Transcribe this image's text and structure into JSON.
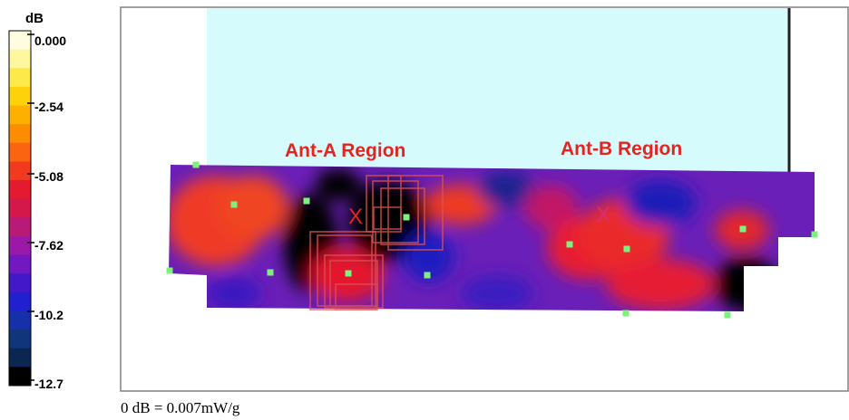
{
  "chart_data": {
    "type": "heatmap",
    "title": "",
    "colorbar": {
      "unit": "dB",
      "ticks": [
        "0.000",
        "-2.54",
        "-5.08",
        "-7.62",
        "-10.2",
        "-12.7"
      ],
      "range": [
        -12.7,
        0.0
      ],
      "levels_high_to_low": [
        "#fffde0",
        "#fff6a0",
        "#fde94a",
        "#fdd20a",
        "#fdb000",
        "#fd8d00",
        "#fb6410",
        "#f23a1e",
        "#e41a30",
        "#d4184a",
        "#b81a78",
        "#9a19a8",
        "#7218c0",
        "#4318c8",
        "#2020d0",
        "#1530a8",
        "#10357a",
        "#0b2650",
        "#000000"
      ]
    },
    "annotations": [
      {
        "text": "Ant-A Region",
        "color": "#e8231f"
      },
      {
        "text": "Ant-B Region",
        "color": "#e8231f"
      }
    ],
    "markers": [
      "X",
      "X"
    ],
    "footnote": "0 dB = 0.007mW/g"
  },
  "colors": {
    "phantom_fill": "#d6fbfc",
    "region_label": "#e8231f",
    "measurement_point": "#7ef07e",
    "antenna_outline": "#e05050"
  }
}
